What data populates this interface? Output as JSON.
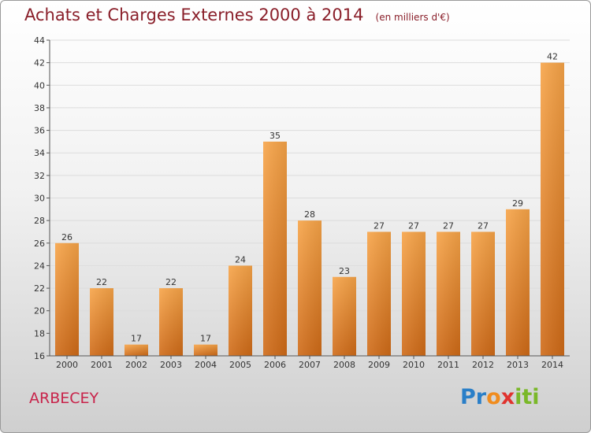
{
  "header": {
    "title": "Achats et Charges Externes 2000 à 2014",
    "subtitle": "(en milliers d'€)"
  },
  "footer": {
    "commune": "ARBECEY",
    "logo": {
      "text": "Proxiti",
      "letters": [
        "P",
        "r",
        "o",
        "x",
        "i",
        "t",
        "i"
      ],
      "colors": [
        "#2a7fc8",
        "#2a7fc8",
        "#f08c1e",
        "#e0332e",
        "#7ab829",
        "#7ab829",
        "#7ab829"
      ]
    }
  },
  "colors": {
    "bar_light": "#f7a448",
    "bar_dark": "#cf6a17",
    "axis": "#555555",
    "grid": "#dcdcdc"
  },
  "chart_data": {
    "type": "bar",
    "title": "Achats et Charges Externes 2000 à 2014",
    "subtitle": "(en milliers d'€)",
    "categories": [
      "2000",
      "2001",
      "2002",
      "2003",
      "2004",
      "2005",
      "2006",
      "2007",
      "2008",
      "2009",
      "2010",
      "2011",
      "2012",
      "2013",
      "2014"
    ],
    "values": [
      26,
      22,
      17,
      22,
      17,
      24,
      35,
      28,
      23,
      27,
      27,
      27,
      27,
      29,
      42
    ],
    "ylim": [
      16,
      44
    ],
    "yticks": [
      16,
      18,
      20,
      22,
      24,
      26,
      28,
      30,
      32,
      34,
      36,
      38,
      40,
      42,
      44
    ],
    "xlabel": "",
    "ylabel": "",
    "grid": true,
    "data_labels": true
  }
}
